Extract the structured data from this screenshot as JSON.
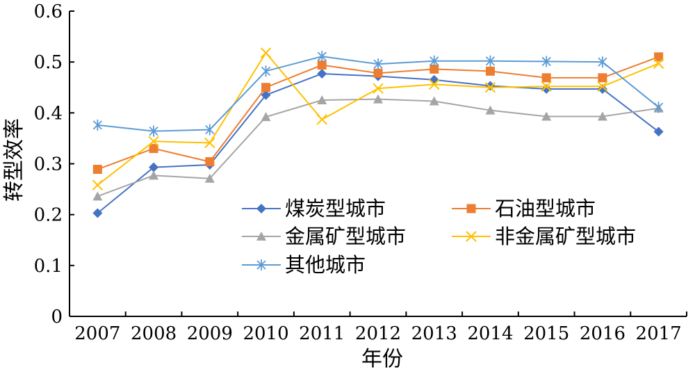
{
  "chart_data": {
    "type": "line",
    "xlabel": "年份",
    "ylabel": "转型效率",
    "ylim": [
      0,
      0.6
    ],
    "yticks": [
      "0",
      "0.1",
      "0.2",
      "0.3",
      "0.4",
      "0.5",
      "0.6"
    ],
    "categories": [
      "2007",
      "2008",
      "2009",
      "2010",
      "2011",
      "2012",
      "2013",
      "2014",
      "2015",
      "2016",
      "2017"
    ],
    "grid": false,
    "legend_position": "center-right",
    "series": [
      {
        "name": "煤炭型城市",
        "marker": "diamond",
        "color": "#4472C4",
        "values": [
          0.203,
          0.293,
          0.298,
          0.435,
          0.477,
          0.472,
          0.465,
          0.453,
          0.447,
          0.447,
          0.363
        ]
      },
      {
        "name": "石油型城市",
        "marker": "square",
        "color": "#ED7D31",
        "values": [
          0.289,
          0.33,
          0.304,
          0.45,
          0.494,
          0.478,
          0.486,
          0.482,
          0.469,
          0.469,
          0.51
        ]
      },
      {
        "name": "金属矿型城市",
        "marker": "triangle",
        "color": "#A5A5A5",
        "values": [
          0.236,
          0.277,
          0.271,
          0.392,
          0.425,
          0.427,
          0.423,
          0.405,
          0.393,
          0.393,
          0.409
        ]
      },
      {
        "name": "非金属矿型城市",
        "marker": "x",
        "color": "#FFC000",
        "values": [
          0.258,
          0.344,
          0.341,
          0.518,
          0.387,
          0.448,
          0.456,
          0.45,
          0.452,
          0.452,
          0.497
        ]
      },
      {
        "name": "其他城市",
        "marker": "star",
        "color": "#5B9BD5",
        "values": [
          0.376,
          0.364,
          0.367,
          0.482,
          0.511,
          0.496,
          0.502,
          0.502,
          0.501,
          0.5,
          0.411
        ]
      }
    ]
  }
}
